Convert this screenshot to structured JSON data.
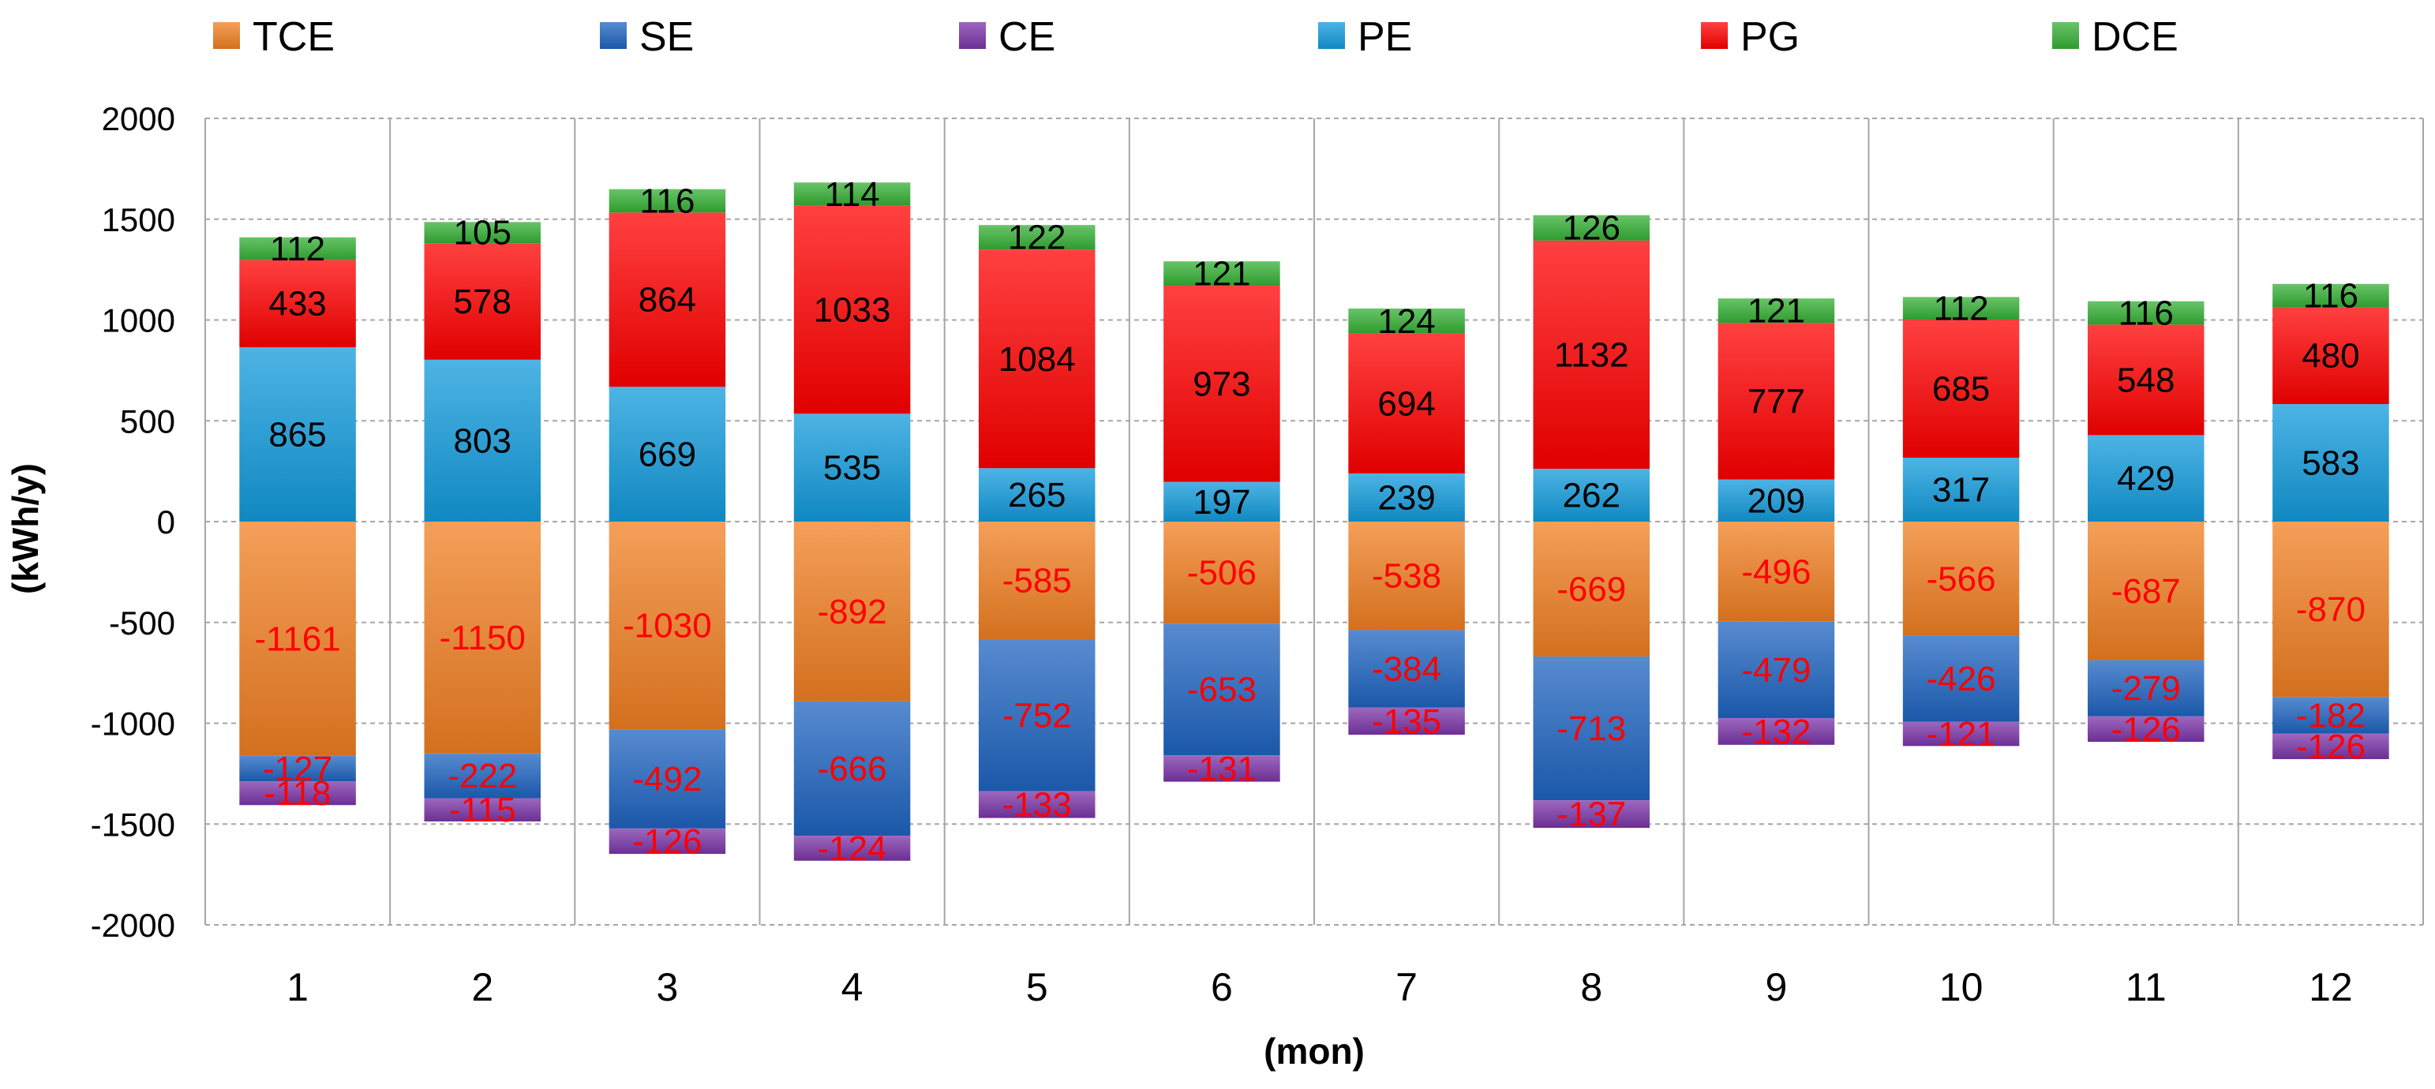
{
  "chart_data": {
    "type": "bar",
    "stacked": true,
    "xlabel": "(mon)",
    "ylabel": "(kWh/y)",
    "ylim": [
      -2000,
      2000
    ],
    "ytick_step": 500,
    "yticks": [
      "2000",
      "1500",
      "1000",
      "500",
      "0",
      "-500",
      "-1000",
      "-1500",
      "-2000"
    ],
    "categories": [
      "1",
      "2",
      "3",
      "4",
      "5",
      "6",
      "7",
      "8",
      "9",
      "10",
      "11",
      "12"
    ],
    "grid": true,
    "legend_position": "top",
    "series": [
      {
        "name": "TCE",
        "color": "#f07f22",
        "direction": "negative",
        "label_color": "#ff0000",
        "values": [
          -1161,
          -1150,
          -1030,
          -892,
          -585,
          -506,
          -538,
          -669,
          -496,
          -566,
          -687,
          -870
        ]
      },
      {
        "name": "SE",
        "color": "#1f64c0",
        "direction": "negative",
        "label_color": "#ff0000",
        "values": [
          -127,
          -222,
          -492,
          -666,
          -752,
          -653,
          -384,
          -713,
          -479,
          -426,
          -279,
          -182
        ]
      },
      {
        "name": "CE",
        "color": "#7b35a8",
        "direction": "negative",
        "label_color": "#ff0000",
        "values": [
          -118,
          -115,
          -126,
          -124,
          -133,
          -131,
          -135,
          -137,
          -132,
          -121,
          -126,
          -126
        ]
      },
      {
        "name": "PE",
        "color": "#129bdb",
        "direction": "positive",
        "label_color": "#000000",
        "values": [
          865,
          803,
          669,
          535,
          265,
          197,
          239,
          262,
          209,
          317,
          429,
          583
        ]
      },
      {
        "name": "PG",
        "color": "#ff0000",
        "direction": "positive",
        "label_color": "#000000",
        "values": [
          433,
          578,
          864,
          1033,
          1084,
          973,
          694,
          1132,
          777,
          685,
          548,
          480
        ]
      },
      {
        "name": "DCE",
        "color": "#35b035",
        "direction": "positive",
        "label_color": "#000000",
        "values": [
          112,
          105,
          116,
          114,
          122,
          121,
          124,
          126,
          121,
          112,
          116,
          116
        ]
      }
    ]
  }
}
